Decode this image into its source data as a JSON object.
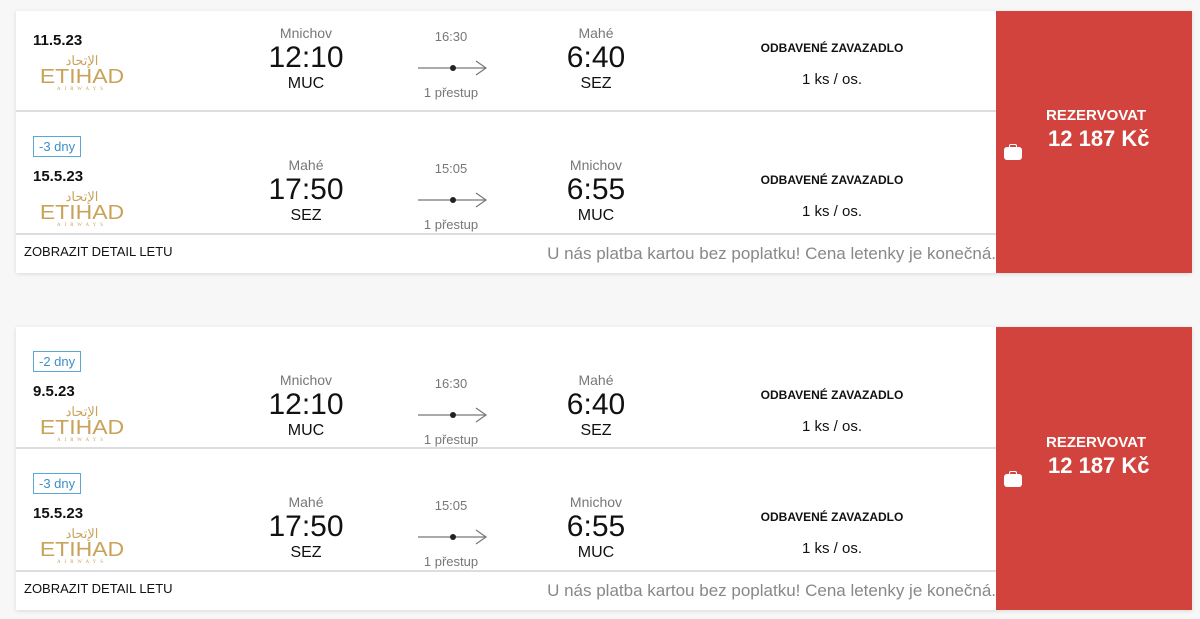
{
  "colors": {
    "book_button": "#d2433d",
    "badge": "#3d8fc7",
    "logo": "#c9a35a"
  },
  "offers": [
    {
      "legs": [
        {
          "badge": null,
          "date": "11.5.23",
          "airline": {
            "arabic": "الإتحاد",
            "name": "ETIHAD",
            "sub": "AIRWAYS"
          },
          "from": {
            "city": "Mnichov",
            "time": "12:10",
            "code": "MUC"
          },
          "duration": "16:30",
          "stops": "1 přestup",
          "to": {
            "city": "Mahé",
            "time": "6:40",
            "code": "SEZ"
          },
          "baggage": {
            "title": "ODBAVENÉ ZAVAZADLO",
            "value": "1 ks / os."
          }
        },
        {
          "badge": "-3 dny",
          "date": "15.5.23",
          "airline": {
            "arabic": "الإتحاد",
            "name": "ETIHAD",
            "sub": "AIRWAYS"
          },
          "from": {
            "city": "Mahé",
            "time": "17:50",
            "code": "SEZ"
          },
          "duration": "15:05",
          "stops": "1 přestup",
          "to": {
            "city": "Mnichov",
            "time": "6:55",
            "code": "MUC"
          },
          "baggage": {
            "title": "ODBAVENÉ ZAVAZADLO",
            "value": "1 ks / os."
          }
        }
      ],
      "detail_link": "ZOBRAZIT DETAIL LETU",
      "note": "U nás platba kartou bez poplatku! Cena letenky je konečná.",
      "book": {
        "label": "REZERVOVAT",
        "price": "12 187 Kč",
        "icon": "suitcase-icon"
      }
    },
    {
      "legs": [
        {
          "badge": "-2 dny",
          "date": "9.5.23",
          "airline": {
            "arabic": "الإتحاد",
            "name": "ETIHAD",
            "sub": "AIRWAYS"
          },
          "from": {
            "city": "Mnichov",
            "time": "12:10",
            "code": "MUC"
          },
          "duration": "16:30",
          "stops": "1 přestup",
          "to": {
            "city": "Mahé",
            "time": "6:40",
            "code": "SEZ"
          },
          "baggage": {
            "title": "ODBAVENÉ ZAVAZADLO",
            "value": "1 ks / os."
          }
        },
        {
          "badge": "-3 dny",
          "date": "15.5.23",
          "airline": {
            "arabic": "الإتحاد",
            "name": "ETIHAD",
            "sub": "AIRWAYS"
          },
          "from": {
            "city": "Mahé",
            "time": "17:50",
            "code": "SEZ"
          },
          "duration": "15:05",
          "stops": "1 přestup",
          "to": {
            "city": "Mnichov",
            "time": "6:55",
            "code": "MUC"
          },
          "baggage": {
            "title": "ODBAVENÉ ZAVAZADLO",
            "value": "1 ks / os."
          }
        }
      ],
      "detail_link": "ZOBRAZIT DETAIL LETU",
      "note": "U nás platba kartou bez poplatku! Cena letenky je konečná.",
      "book": {
        "label": "REZERVOVAT",
        "price": "12 187 Kč",
        "icon": "suitcase-icon"
      }
    }
  ]
}
